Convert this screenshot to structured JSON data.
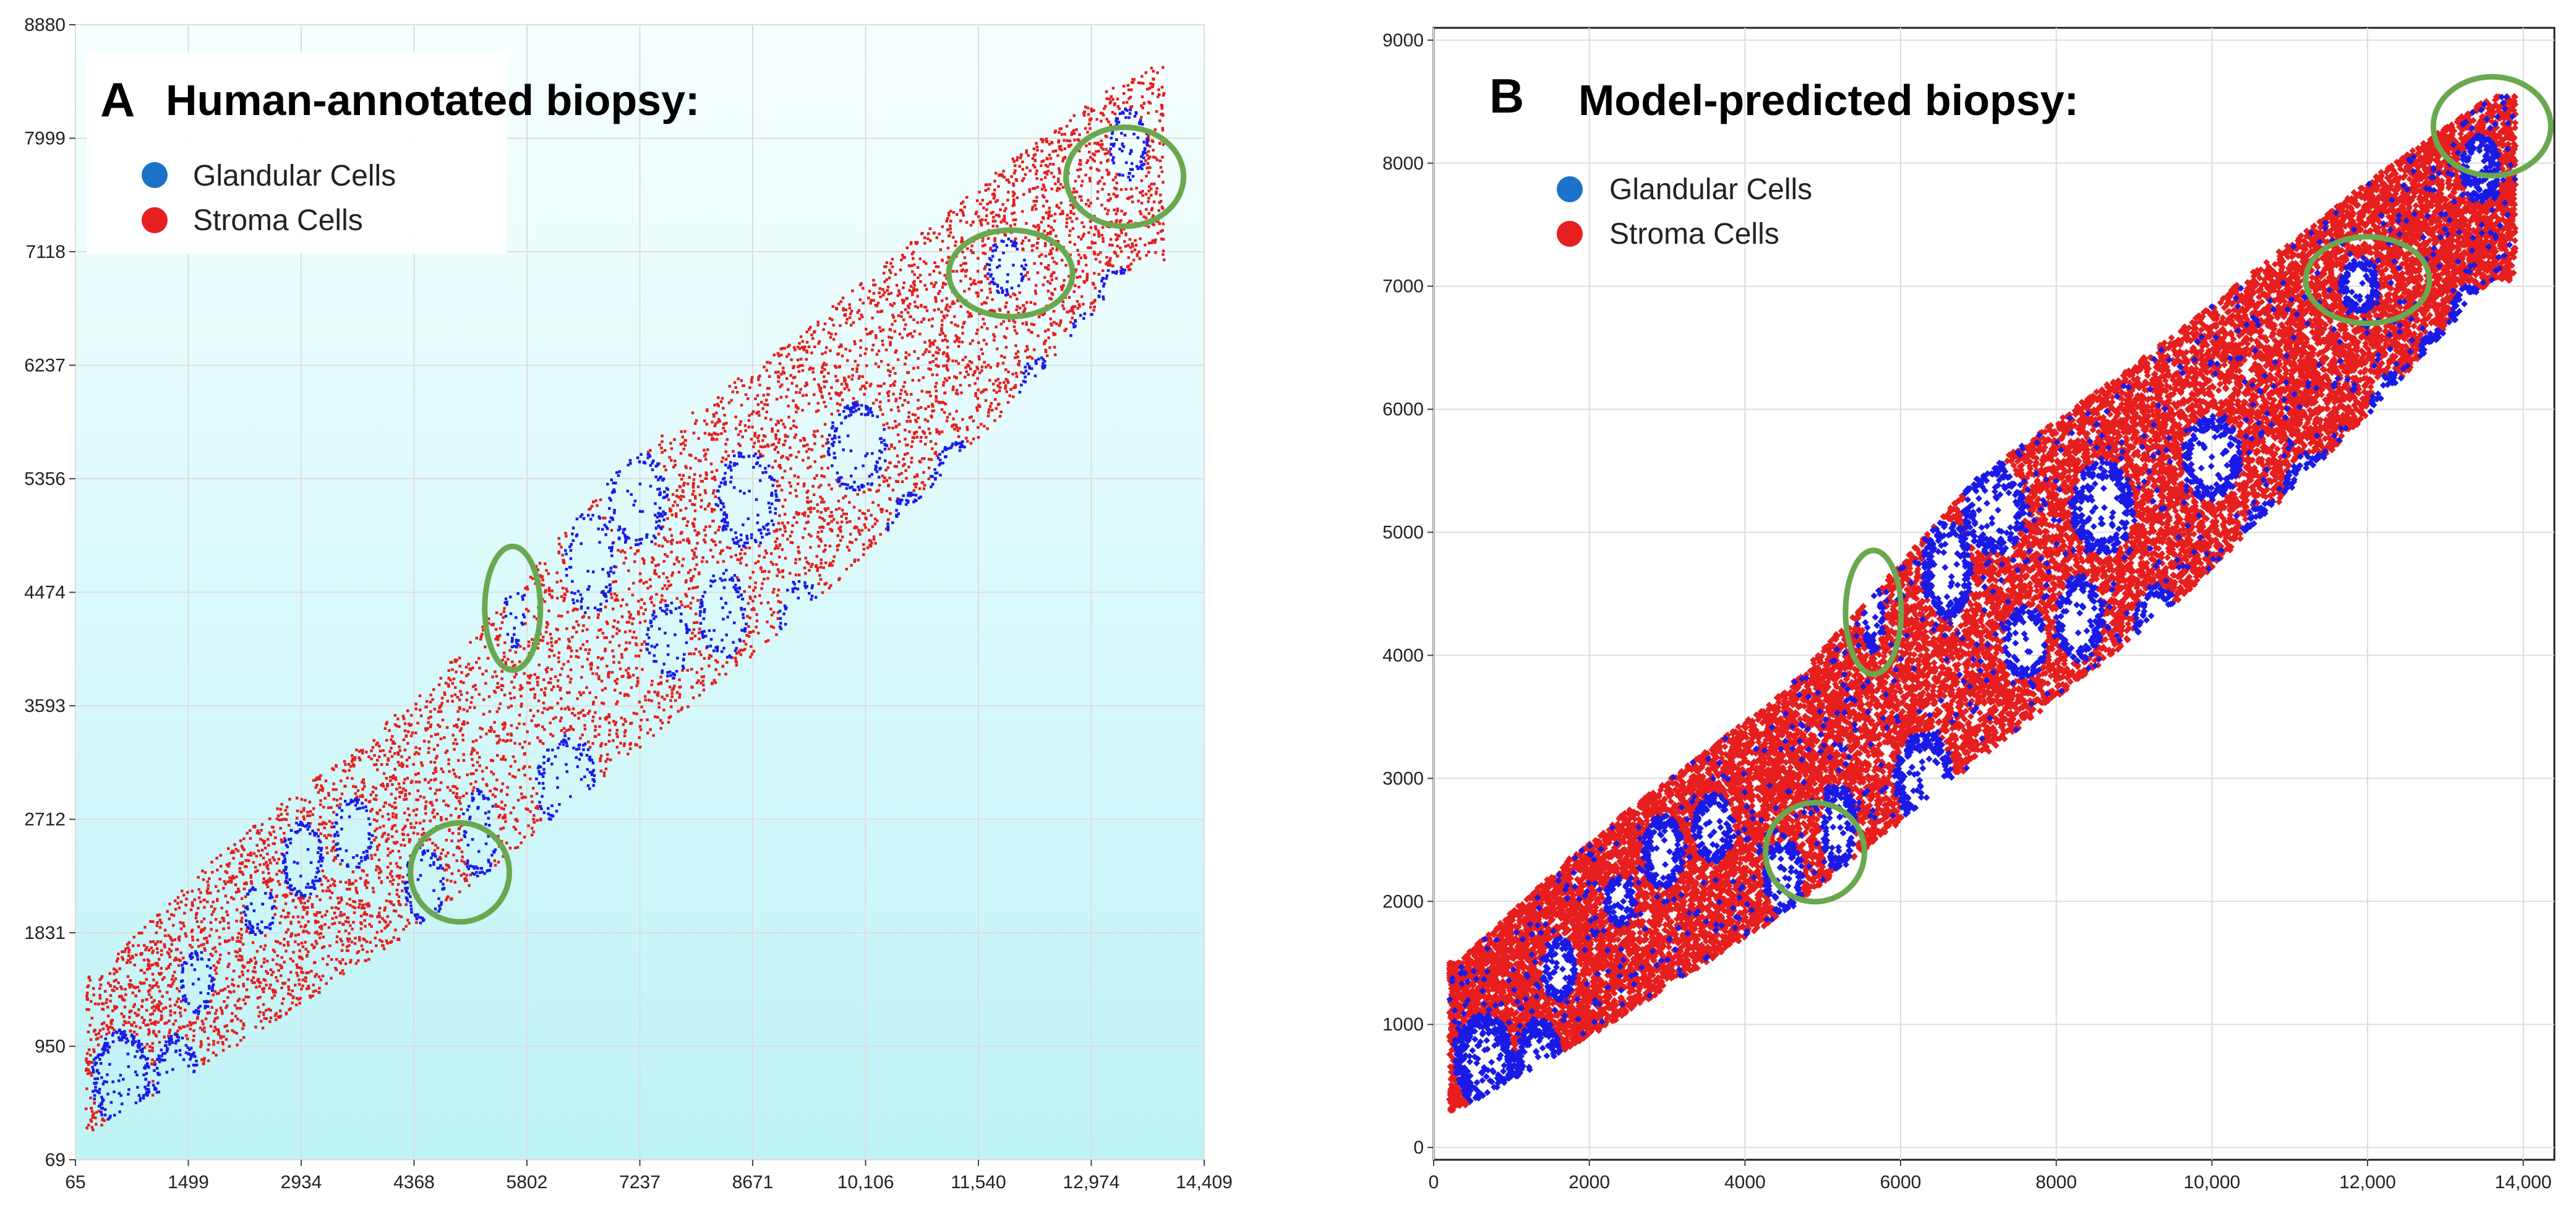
{
  "figure": {
    "colors": {
      "glandular": "#1a1ae6",
      "stroma": "#e61e1e",
      "legend_glandular": "#1a73c8",
      "legend_stroma": "#e62020",
      "highlight": "#6aa84f",
      "panel_a_bg_top": "#f7ffff",
      "panel_a_bg_bottom": "#bff3f6",
      "grid": "#dddddd"
    }
  },
  "chart_data": [
    {
      "type": "scatter",
      "panel_label": "A",
      "title": "Human-annotated biopsy",
      "title_suffix": ":",
      "legend": [
        {
          "label": "Glandular Cells",
          "color": "#1a73c8"
        },
        {
          "label": "Stroma Cells",
          "color": "#e62020"
        }
      ],
      "legend_position": "top-left",
      "x_ticks": [
        "65",
        "1499",
        "2934",
        "4368",
        "5802",
        "7237",
        "8671",
        "10,106",
        "11,540",
        "12,974",
        "14,409"
      ],
      "y_ticks": [
        "69",
        "950",
        "1831",
        "2712",
        "3593",
        "4474",
        "5356",
        "6237",
        "7118",
        "7999",
        "8880"
      ],
      "xlim": [
        65,
        14409
      ],
      "ylim": [
        69,
        8880
      ],
      "grid": true,
      "series": [
        {
          "name": "Glandular Cells",
          "marker": "dot"
        },
        {
          "name": "Stroma Cells",
          "marker": "dot"
        }
      ],
      "highlights": [
        {
          "x": 13400,
          "y": 7700
        },
        {
          "x": 11950,
          "y": 6950
        },
        {
          "x": 5620,
          "y": 4350
        },
        {
          "x": 4950,
          "y": 2300
        }
      ]
    },
    {
      "type": "scatter",
      "panel_label": "B",
      "title": "Model-predicted biopsy",
      "title_suffix": ":",
      "legend": [
        {
          "label": "Glandular Cells",
          "color": "#1a73c8"
        },
        {
          "label": "Stroma Cells",
          "color": "#e62020"
        }
      ],
      "legend_position": "top-left",
      "x_ticks": [
        "0",
        "2000",
        "4000",
        "6000",
        "8000",
        "10,000",
        "12,000",
        "14,000"
      ],
      "y_ticks": [
        "0",
        "1000",
        "2000",
        "3000",
        "4000",
        "5000",
        "6000",
        "7000",
        "8000",
        "9000"
      ],
      "xlim": [
        0,
        14400
      ],
      "ylim": [
        -100,
        9100
      ],
      "grid": true,
      "series": [
        {
          "name": "Glandular Cells",
          "marker": "diamond"
        },
        {
          "name": "Stroma Cells",
          "marker": "diamond"
        }
      ],
      "highlights": [
        {
          "x": 13600,
          "y": 8300
        },
        {
          "x": 12000,
          "y": 7050
        },
        {
          "x": 5650,
          "y": 4350
        },
        {
          "x": 4900,
          "y": 2400
        }
      ]
    }
  ]
}
